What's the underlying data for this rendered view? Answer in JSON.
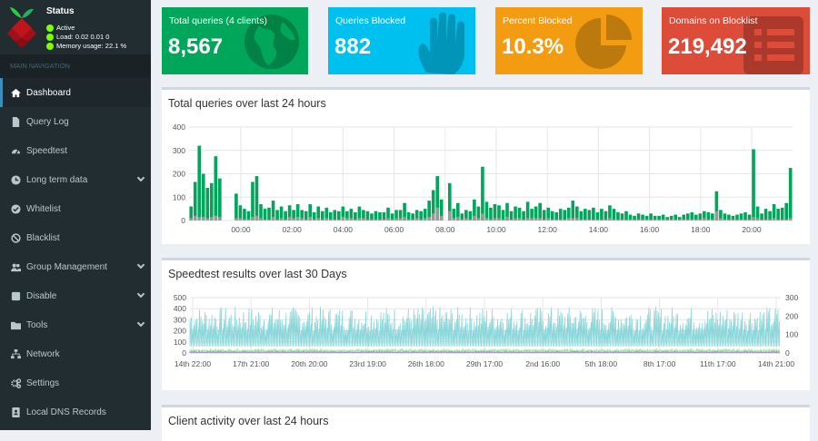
{
  "status": {
    "title": "Status",
    "lines": [
      "Active",
      "Load: 0.02  0.01  0",
      "Memory usage: 22.1 %"
    ]
  },
  "nav": {
    "header": "MAIN NAVIGATION",
    "items": [
      {
        "label": "Dashboard",
        "icon": "home-icon"
      },
      {
        "label": "Query Log",
        "icon": "file-icon"
      },
      {
        "label": "Speedtest",
        "icon": "gauge-icon"
      },
      {
        "label": "Long term data",
        "icon": "clock-icon"
      },
      {
        "label": "Whitelist",
        "icon": "check-circle-icon"
      },
      {
        "label": "Blacklist",
        "icon": "ban-icon"
      },
      {
        "label": "Group Management",
        "icon": "users-icon"
      },
      {
        "label": "Disable",
        "icon": "stop-icon"
      },
      {
        "label": "Tools",
        "icon": "folder-icon"
      },
      {
        "label": "Network",
        "icon": "network-icon"
      },
      {
        "label": "Settings",
        "icon": "gears-icon"
      },
      {
        "label": "Local DNS Records",
        "icon": "address-book-icon"
      }
    ]
  },
  "stats": [
    {
      "label": "Total queries (4 clients)",
      "value": "8,567",
      "color": "#00a65a",
      "icon": "globe-icon"
    },
    {
      "label": "Queries Blocked",
      "value": "882",
      "color": "#00c0ef",
      "icon": "hand-icon"
    },
    {
      "label": "Percent Blocked",
      "value": "10.3%",
      "color": "#f39c12",
      "icon": "pie-chart-icon"
    },
    {
      "label": "Domains on Blocklist",
      "value": "219,492",
      "color": "#dd4b39",
      "icon": "list-icon"
    }
  ],
  "panels": {
    "queries_title": "Total queries over last 24 hours",
    "speed_title": "Speedtest results over last 30 Days",
    "clients_title": "Client activity over last 24 hours"
  },
  "chart_data": [
    {
      "type": "bar",
      "title": "Total queries over last 24 hours",
      "ylim": [
        0,
        400
      ],
      "yticks": [
        "400",
        "300",
        "200",
        "100",
        "0"
      ],
      "xticks": [
        "00:00",
        "02:00",
        "04:00",
        "06:00",
        "08:00",
        "10:00",
        "12:00",
        "14:00",
        "16:00",
        "18:00",
        "20:00"
      ],
      "series": [
        {
          "color": "#00a65a",
          "values": [
            60,
            165,
            320,
            200,
            140,
            160,
            275,
            180,
            0,
            0,
            0,
            115,
            65,
            50,
            40,
            165,
            190,
            70,
            50,
            55,
            85,
            45,
            60,
            40,
            65,
            45,
            70,
            45,
            40,
            70,
            35,
            60,
            40,
            55,
            35,
            45,
            40,
            60,
            40,
            50,
            35,
            60,
            45,
            40,
            30,
            40,
            35,
            35,
            55,
            30,
            45,
            45,
            75,
            35,
            30,
            45,
            40,
            50,
            85,
            130,
            190,
            90,
            0,
            160,
            50,
            75,
            30,
            45,
            40,
            90,
            60,
            230,
            80,
            55,
            70,
            65,
            45,
            75,
            40,
            60,
            55,
            40,
            80,
            50,
            60,
            75,
            45,
            55,
            40,
            35,
            50,
            45,
            55,
            85,
            60,
            40,
            50,
            45,
            55,
            35,
            50,
            40,
            65,
            50,
            35,
            30,
            40,
            25,
            20,
            30,
            25,
            20,
            30,
            20,
            20,
            25,
            15,
            20,
            25,
            15,
            25,
            30,
            35,
            25,
            30,
            40,
            35,
            30,
            125,
            45,
            30,
            25,
            20,
            25,
            30,
            35,
            25,
            305,
            60,
            30,
            50,
            40,
            70,
            50,
            55,
            75,
            225
          ]
        },
        {
          "color": "#999999",
          "values": [
            10,
            20,
            15,
            15,
            10,
            15,
            20,
            15,
            0,
            0,
            0,
            10,
            10,
            5,
            5,
            15,
            20,
            10,
            5,
            5,
            15,
            5,
            10,
            5,
            15,
            10,
            15,
            10,
            5,
            15,
            5,
            10,
            5,
            10,
            5,
            5,
            5,
            15,
            10,
            10,
            5,
            10,
            10,
            5,
            5,
            5,
            5,
            5,
            10,
            5,
            10,
            10,
            15,
            5,
            5,
            10,
            5,
            10,
            15,
            30,
            55,
            20,
            0,
            40,
            10,
            15,
            5,
            10,
            5,
            20,
            10,
            30,
            10,
            5,
            10,
            10,
            5,
            15,
            5,
            10,
            10,
            5,
            10,
            10,
            10,
            10,
            5,
            10,
            5,
            5,
            5,
            5,
            10,
            10,
            10,
            5,
            5,
            5,
            5,
            5,
            5,
            5,
            10,
            5,
            5,
            5,
            5,
            5,
            5,
            5,
            5,
            5,
            5,
            5,
            5,
            5,
            5,
            5,
            5,
            5,
            5,
            5,
            5,
            5,
            5,
            10,
            5,
            5,
            40,
            10,
            5,
            5,
            5,
            5,
            5,
            5,
            5,
            15,
            10,
            5,
            5,
            5,
            10,
            5,
            5,
            5,
            10
          ]
        }
      ]
    },
    {
      "type": "line",
      "title": "Speedtest results over last 30 Days",
      "ylim_left": [
        0,
        500
      ],
      "ylim_right": [
        0,
        300
      ],
      "yticks_left": [
        "500",
        "400",
        "300",
        "200",
        "100",
        "0"
      ],
      "yticks_right": [
        "300",
        "200",
        "100",
        "0"
      ],
      "xticks": [
        "14th 22:00",
        "17th 21:00",
        "20th 20:00",
        "23rd 19:00",
        "26th 18:00",
        "29th 17:00",
        "2nd 16:00",
        "5th 18:00",
        "8th 17:00",
        "11th 17:00",
        "14th 21:00"
      ],
      "series": [
        {
          "color": "#7fd3d6",
          "range": [
            200,
            420
          ]
        },
        {
          "color": "#a6e3a1",
          "range": [
            20,
            40
          ]
        },
        {
          "color": "#9e8fcf",
          "range": [
            5,
            15
          ]
        }
      ]
    }
  ]
}
